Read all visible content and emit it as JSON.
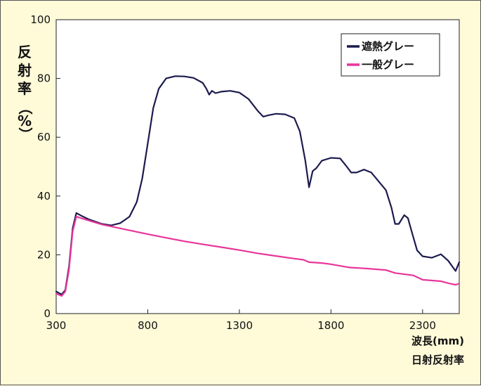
{
  "chart_data": {
    "type": "line",
    "ylabel": "反射率（%）",
    "ylabel_chars": [
      "反",
      "射",
      "率",
      "（",
      "%",
      "）"
    ],
    "xlabel": "波長(mm)",
    "xlabel_line2": "日射反射率",
    "xlim": [
      300,
      2500
    ],
    "ylim": [
      0,
      100
    ],
    "x_ticks": [
      300,
      800,
      1300,
      1800,
      2300
    ],
    "y_ticks": [
      0,
      20,
      40,
      60,
      80,
      100
    ],
    "grid": false,
    "legend_position": "top-right",
    "series": [
      {
        "name": "遮熱グレー",
        "color": "#1c1b4f",
        "points": [
          [
            300,
            7.5
          ],
          [
            330,
            6.5
          ],
          [
            350,
            8
          ],
          [
            370,
            16
          ],
          [
            390,
            29
          ],
          [
            410,
            34.2
          ],
          [
            440,
            33.2
          ],
          [
            480,
            32
          ],
          [
            550,
            30.5
          ],
          [
            600,
            30
          ],
          [
            650,
            30.8
          ],
          [
            700,
            33
          ],
          [
            740,
            38
          ],
          [
            770,
            46
          ],
          [
            800,
            58
          ],
          [
            830,
            70
          ],
          [
            860,
            76.5
          ],
          [
            900,
            80
          ],
          [
            950,
            80.8
          ],
          [
            1000,
            80.7
          ],
          [
            1050,
            80.2
          ],
          [
            1100,
            78.5
          ],
          [
            1120,
            76.5
          ],
          [
            1135,
            74.5
          ],
          [
            1150,
            75.8
          ],
          [
            1170,
            75
          ],
          [
            1200,
            75.5
          ],
          [
            1250,
            75.8
          ],
          [
            1300,
            75.2
          ],
          [
            1350,
            73
          ],
          [
            1400,
            69
          ],
          [
            1430,
            67
          ],
          [
            1460,
            67.5
          ],
          [
            1500,
            68
          ],
          [
            1550,
            67.8
          ],
          [
            1600,
            66.5
          ],
          [
            1630,
            62
          ],
          [
            1660,
            52
          ],
          [
            1680,
            43
          ],
          [
            1700,
            48.5
          ],
          [
            1720,
            49.5
          ],
          [
            1750,
            52
          ],
          [
            1800,
            53
          ],
          [
            1850,
            52.8
          ],
          [
            1880,
            50.5
          ],
          [
            1910,
            48
          ],
          [
            1940,
            48
          ],
          [
            1980,
            49
          ],
          [
            2020,
            48
          ],
          [
            2060,
            45
          ],
          [
            2100,
            42
          ],
          [
            2130,
            36
          ],
          [
            2150,
            30.5
          ],
          [
            2170,
            30.5
          ],
          [
            2200,
            33.5
          ],
          [
            2220,
            32.5
          ],
          [
            2240,
            28
          ],
          [
            2270,
            21.5
          ],
          [
            2300,
            19.5
          ],
          [
            2350,
            19
          ],
          [
            2400,
            20.2
          ],
          [
            2440,
            18
          ],
          [
            2480,
            14.5
          ],
          [
            2500,
            17.5
          ]
        ]
      },
      {
        "name": "一般グレー",
        "color": "#e8369a",
        "points": [
          [
            300,
            6.8
          ],
          [
            330,
            6
          ],
          [
            350,
            7.5
          ],
          [
            370,
            15
          ],
          [
            390,
            28
          ],
          [
            410,
            33
          ],
          [
            450,
            32.2
          ],
          [
            550,
            30.3
          ],
          [
            650,
            29
          ],
          [
            800,
            27
          ],
          [
            900,
            25.8
          ],
          [
            1000,
            24.6
          ],
          [
            1100,
            23.6
          ],
          [
            1200,
            22.6
          ],
          [
            1300,
            21.6
          ],
          [
            1400,
            20.5
          ],
          [
            1500,
            19.6
          ],
          [
            1600,
            18.7
          ],
          [
            1650,
            18.3
          ],
          [
            1680,
            17.5
          ],
          [
            1750,
            17.2
          ],
          [
            1800,
            16.8
          ],
          [
            1900,
            15.7
          ],
          [
            2000,
            15.3
          ],
          [
            2100,
            14.8
          ],
          [
            2150,
            13.8
          ],
          [
            2250,
            13
          ],
          [
            2300,
            11.5
          ],
          [
            2400,
            11
          ],
          [
            2450,
            10.2
          ],
          [
            2480,
            9.8
          ],
          [
            2500,
            10.2
          ]
        ]
      }
    ]
  }
}
